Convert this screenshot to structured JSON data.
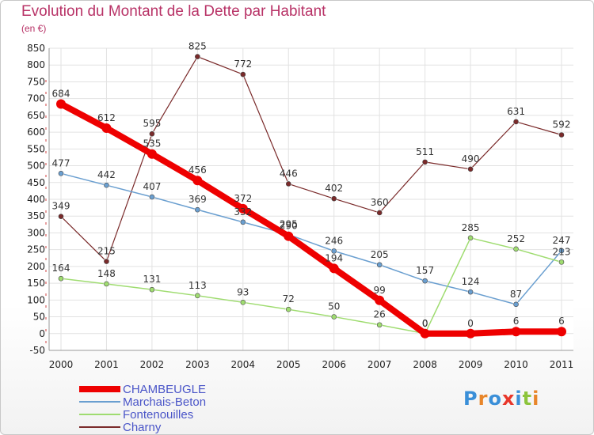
{
  "title": "Evolution du Montant de la Dette par Habitant",
  "subtitle": "(en €)",
  "logo": {
    "text": "Proxiti",
    "colors": [
      "#3a8fd8",
      "#e8862a",
      "#3a8fd8",
      "#e8362a",
      "#3a8fd8",
      "#8cc43c",
      "#e8862a"
    ]
  },
  "chart_data": {
    "type": "line",
    "x": [
      "2000",
      "2001",
      "2002",
      "2003",
      "2004",
      "2005",
      "2006",
      "2007",
      "2008",
      "2009",
      "2010",
      "2011"
    ],
    "ylim": [
      -50,
      850
    ],
    "yticks": [
      -50,
      0,
      50,
      100,
      150,
      200,
      250,
      300,
      350,
      400,
      450,
      500,
      550,
      600,
      650,
      700,
      750,
      800,
      850
    ],
    "grid": true,
    "legend": "bottom-left",
    "series": [
      {
        "name": "CHAMBEUGLE",
        "color": "#ee0000",
        "width": 8,
        "marker": 6,
        "values": [
          684,
          612,
          535,
          456,
          372,
          290,
          194,
          99,
          0,
          0,
          6,
          6
        ],
        "labels": [
          "684",
          "612",
          "535",
          "456",
          "372",
          "290",
          "194",
          "99",
          "0",
          "0",
          "6",
          "6"
        ]
      },
      {
        "name": "Marchais-Beton",
        "color": "#6a9fd0",
        "width": 1.5,
        "marker": 3,
        "values": [
          477,
          442,
          407,
          369,
          332,
          295,
          246,
          205,
          157,
          124,
          87,
          247
        ],
        "labels": [
          "477",
          "442",
          "407",
          "369",
          "332",
          "295",
          "246",
          "205",
          "157",
          "124",
          "87",
          "247"
        ]
      },
      {
        "name": "Fontenouilles",
        "color": "#9fdc70",
        "width": 1.5,
        "marker": 3,
        "values": [
          164,
          148,
          131,
          113,
          93,
          72,
          50,
          26,
          0,
          285,
          252,
          213
        ],
        "labels": [
          "164",
          "148",
          "131",
          "113",
          "93",
          "72",
          "50",
          "26",
          "0",
          "285",
          "252",
          "213"
        ]
      },
      {
        "name": "Charny",
        "color": "#7a2a2a",
        "width": 1.2,
        "marker": 3,
        "values": [
          349,
          215,
          595,
          825,
          772,
          446,
          402,
          360,
          511,
          490,
          631,
          592
        ],
        "labels": [
          "349",
          "215",
          "595",
          "825",
          "772",
          "446",
          "402",
          "360",
          "511",
          "490",
          "631",
          "592"
        ]
      }
    ]
  }
}
